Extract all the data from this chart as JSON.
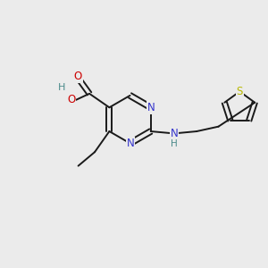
{
  "background_color": "#ebebeb",
  "bond_color": "#1a1a1a",
  "N_color": "#3333cc",
  "O_color": "#cc0000",
  "S_color": "#b8b800",
  "H_color": "#4a8a8a",
  "figsize": [
    3.0,
    3.0
  ],
  "dpi": 100,
  "xlim": [
    0,
    10
  ],
  "ylim": [
    0,
    10
  ]
}
